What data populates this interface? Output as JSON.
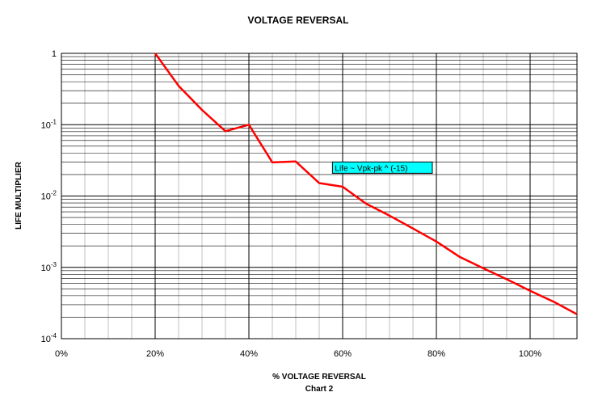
{
  "chart_data": {
    "type": "line",
    "title": "VOLTAGE REVERSAL",
    "xlabel": "% VOLTAGE REVERSAL",
    "xlabel_sub": "Chart 2",
    "ylabel": "LIFE MULTIPLIER",
    "xlim": [
      0,
      110
    ],
    "ylim": [
      0.0001,
      1
    ],
    "y_scale": "log",
    "grid": true,
    "x_ticks": [
      {
        "value": 0,
        "label": "0%"
      },
      {
        "value": 20,
        "label": "20%"
      },
      {
        "value": 40,
        "label": "40%"
      },
      {
        "value": 60,
        "label": "60%"
      },
      {
        "value": 80,
        "label": "80%"
      },
      {
        "value": 100,
        "label": "100%"
      }
    ],
    "y_ticks": [
      {
        "value": 1,
        "base": "1",
        "exp": ""
      },
      {
        "value": 0.1,
        "base": "10",
        "exp": "-1"
      },
      {
        "value": 0.01,
        "base": "10",
        "exp": "-2"
      },
      {
        "value": 0.001,
        "base": "10",
        "exp": "-3"
      },
      {
        "value": 0.0001,
        "base": "10",
        "exp": "-4"
      }
    ],
    "series": [
      {
        "color": "#ff0000",
        "x": [
          20,
          25,
          30,
          35,
          40,
          45,
          50,
          55,
          60,
          65,
          70,
          75,
          80,
          85,
          90,
          95,
          100,
          105,
          110
        ],
        "y": [
          1,
          0.35,
          0.161,
          0.081,
          0.0999,
          0.0296,
          0.0305,
          0.0152,
          0.0135,
          0.0078,
          0.0053,
          0.0035,
          0.0023,
          0.0014,
          0.00097,
          0.00068,
          0.00047,
          0.00033,
          0.00022
        ]
      }
    ],
    "annotations": [
      {
        "text": "Life ~ Vpk-pk ^ (-15)",
        "x": 58,
        "y": 0.025,
        "background": "#00ffff"
      }
    ]
  }
}
